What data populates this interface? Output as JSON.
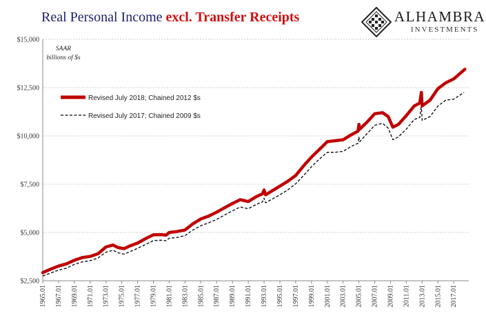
{
  "header": {
    "title_part1": "Real Personal Income ",
    "title_part2": "excl. Transfer Receipts"
  },
  "brand": {
    "name": "ALHAMBRA",
    "sub": "INVESTMENTS"
  },
  "colors": {
    "title_blue": "#1f1f6e",
    "title_red": "#d01010",
    "series_2018": "#c00000",
    "series_2017": "#000000",
    "grid": "#bfbfbf"
  },
  "chart_data": {
    "type": "line",
    "annotation": [
      "SAAR",
      "billions of $s"
    ],
    "ylim": [
      2500,
      15000
    ],
    "yticks": [
      2500,
      5000,
      7500,
      10000,
      12500,
      15000
    ],
    "ytick_labels": [
      "$2,500",
      "$5,000",
      "$7,500",
      "$10,000",
      "$12,500",
      "$15,000"
    ],
    "xlim": [
      1965.0,
      2018.9
    ],
    "xticks": [
      1965,
      1967,
      1969,
      1971,
      1973,
      1975,
      1977,
      1979,
      1981,
      1983,
      1985,
      1987,
      1989,
      1991,
      1993,
      1995,
      1997,
      1999,
      2001,
      2003,
      2005,
      2007,
      2009,
      2011,
      2013,
      2015,
      2017
    ],
    "xtick_labels": [
      "1965.01",
      "1967.01",
      "1969.01",
      "1971.01",
      "1973.01",
      "1975.01",
      "1977.01",
      "1979.01",
      "1981.01",
      "1983.01",
      "1985.01",
      "1987.01",
      "1989.01",
      "1991.01",
      "1993.01",
      "1995.01",
      "1997.01",
      "1999.01",
      "2001.01",
      "2003.01",
      "2005.01",
      "2007.01",
      "2009.01",
      "2011.01",
      "2013.01",
      "2015.01",
      "2017.01"
    ],
    "grid": "horizontal",
    "legend_position": "upper-left",
    "series": [
      {
        "name": "Revised July 2018; Chained 2012 $s",
        "style": "solid-thick",
        "points": [
          [
            1965.0,
            2920
          ],
          [
            1966.0,
            3100
          ],
          [
            1967.0,
            3260
          ],
          [
            1968.0,
            3380
          ],
          [
            1969.0,
            3560
          ],
          [
            1970.0,
            3700
          ],
          [
            1971.0,
            3760
          ],
          [
            1972.0,
            3900
          ],
          [
            1973.0,
            4250
          ],
          [
            1973.9,
            4350
          ],
          [
            1974.5,
            4220
          ],
          [
            1975.3,
            4160
          ],
          [
            1976.0,
            4300
          ],
          [
            1977.0,
            4450
          ],
          [
            1978.0,
            4680
          ],
          [
            1979.0,
            4880
          ],
          [
            1980.0,
            4890
          ],
          [
            1980.6,
            4860
          ],
          [
            1981.0,
            5000
          ],
          [
            1982.0,
            5050
          ],
          [
            1983.0,
            5130
          ],
          [
            1984.0,
            5450
          ],
          [
            1985.0,
            5700
          ],
          [
            1986.0,
            5850
          ],
          [
            1987.0,
            6050
          ],
          [
            1988.0,
            6280
          ],
          [
            1989.0,
            6500
          ],
          [
            1990.0,
            6700
          ],
          [
            1991.0,
            6600
          ],
          [
            1992.0,
            6850
          ],
          [
            1992.8,
            7000
          ],
          [
            1993.0,
            7200
          ],
          [
            1993.2,
            6950
          ],
          [
            1994.0,
            7150
          ],
          [
            1995.0,
            7400
          ],
          [
            1996.0,
            7650
          ],
          [
            1997.0,
            7950
          ],
          [
            1998.0,
            8450
          ],
          [
            1999.0,
            8900
          ],
          [
            2000.0,
            9300
          ],
          [
            2001.0,
            9700
          ],
          [
            2002.0,
            9750
          ],
          [
            2003.0,
            9800
          ],
          [
            2004.0,
            10050
          ],
          [
            2004.9,
            10250
          ],
          [
            2005.0,
            10600
          ],
          [
            2005.1,
            10350
          ],
          [
            2006.0,
            10700
          ],
          [
            2007.0,
            11150
          ],
          [
            2008.0,
            11200
          ],
          [
            2008.7,
            11000
          ],
          [
            2009.3,
            10450
          ],
          [
            2010.0,
            10600
          ],
          [
            2011.0,
            11050
          ],
          [
            2012.0,
            11550
          ],
          [
            2012.7,
            11700
          ],
          [
            2012.9,
            12250
          ],
          [
            2013.0,
            11550
          ],
          [
            2014.0,
            11850
          ],
          [
            2015.0,
            12450
          ],
          [
            2016.0,
            12750
          ],
          [
            2017.0,
            12950
          ],
          [
            2018.4,
            13450
          ]
        ]
      },
      {
        "name": "Revised July 2017; Chained 2009 $s",
        "style": "dashed",
        "points": [
          [
            1965.0,
            2750
          ],
          [
            1966.0,
            2900
          ],
          [
            1967.0,
            3050
          ],
          [
            1968.0,
            3150
          ],
          [
            1969.0,
            3350
          ],
          [
            1970.0,
            3480
          ],
          [
            1971.0,
            3540
          ],
          [
            1972.0,
            3680
          ],
          [
            1973.0,
            3980
          ],
          [
            1973.9,
            4080
          ],
          [
            1974.5,
            3950
          ],
          [
            1975.3,
            3880
          ],
          [
            1976.0,
            4000
          ],
          [
            1977.0,
            4180
          ],
          [
            1978.0,
            4380
          ],
          [
            1979.0,
            4580
          ],
          [
            1980.0,
            4600
          ],
          [
            1980.6,
            4570
          ],
          [
            1981.0,
            4700
          ],
          [
            1982.0,
            4740
          ],
          [
            1983.0,
            4840
          ],
          [
            1984.0,
            5130
          ],
          [
            1985.0,
            5350
          ],
          [
            1986.0,
            5500
          ],
          [
            1987.0,
            5680
          ],
          [
            1988.0,
            5900
          ],
          [
            1989.0,
            6120
          ],
          [
            1990.0,
            6320
          ],
          [
            1991.0,
            6230
          ],
          [
            1992.0,
            6450
          ],
          [
            1992.8,
            6580
          ],
          [
            1993.0,
            6780
          ],
          [
            1993.2,
            6540
          ],
          [
            1994.0,
            6720
          ],
          [
            1995.0,
            6950
          ],
          [
            1996.0,
            7200
          ],
          [
            1997.0,
            7520
          ],
          [
            1998.0,
            7950
          ],
          [
            1999.0,
            8400
          ],
          [
            2000.0,
            8800
          ],
          [
            2001.0,
            9150
          ],
          [
            2002.0,
            9150
          ],
          [
            2003.0,
            9200
          ],
          [
            2004.0,
            9450
          ],
          [
            2004.9,
            9620
          ],
          [
            2005.0,
            9950
          ],
          [
            2005.1,
            9700
          ],
          [
            2006.0,
            10100
          ],
          [
            2007.0,
            10550
          ],
          [
            2008.0,
            10650
          ],
          [
            2008.7,
            10400
          ],
          [
            2009.3,
            9800
          ],
          [
            2010.0,
            9950
          ],
          [
            2011.0,
            10350
          ],
          [
            2012.0,
            10850
          ],
          [
            2012.7,
            10950
          ],
          [
            2012.9,
            11600
          ],
          [
            2013.0,
            10800
          ],
          [
            2014.0,
            11000
          ],
          [
            2015.0,
            11550
          ],
          [
            2016.0,
            11850
          ],
          [
            2017.0,
            11900
          ],
          [
            2018.3,
            12250
          ]
        ]
      }
    ]
  }
}
